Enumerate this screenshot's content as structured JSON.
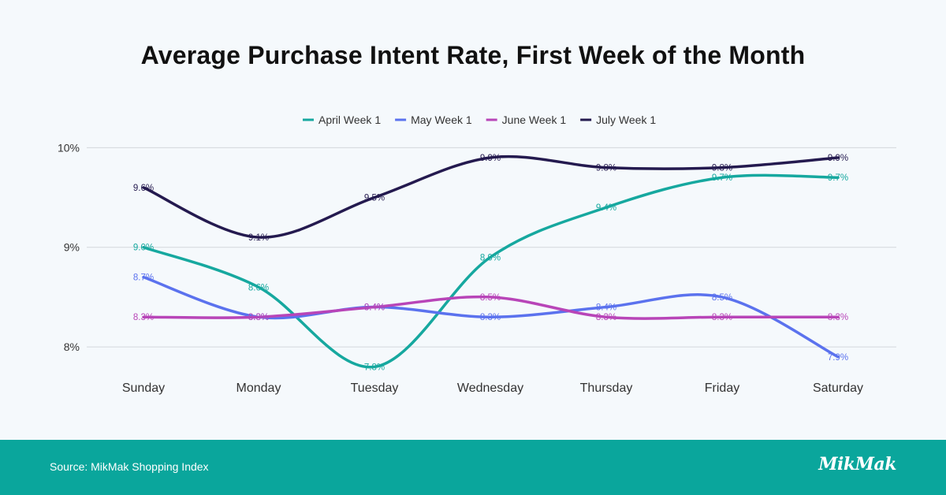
{
  "chart_data": {
    "type": "line",
    "title": "Average Purchase Intent Rate, First Week of the Month",
    "categories": [
      "Sunday",
      "Monday",
      "Tuesday",
      "Wednesday",
      "Thursday",
      "Friday",
      "Saturday"
    ],
    "ylim": [
      7.55,
      10.05
    ],
    "yticks": [
      {
        "value": 8,
        "label": "8%"
      },
      {
        "value": 9,
        "label": "9%"
      },
      {
        "value": 10,
        "label": "10%"
      }
    ],
    "legend_position": "top-center",
    "series": [
      {
        "name": "April Week 1",
        "color": "#16a89f",
        "values": [
          9.0,
          8.6,
          7.8,
          8.9,
          9.4,
          9.7,
          9.7
        ],
        "labels": [
          "9.0%",
          "8.6%",
          "7.8%",
          "8.9%",
          "9.4%",
          "9.7%",
          "9.7%"
        ]
      },
      {
        "name": "May Week 1",
        "color": "#5b72ee",
        "values": [
          8.7,
          8.3,
          8.4,
          8.3,
          8.4,
          8.5,
          7.9
        ],
        "labels": [
          "8.7%",
          "8.3%",
          "8.4%",
          "8.3%",
          "8.4%",
          "8.5%",
          "7.9%"
        ]
      },
      {
        "name": "June Week 1",
        "color": "#b845b8",
        "values": [
          8.3,
          8.3,
          8.4,
          8.5,
          8.3,
          8.3,
          8.3
        ],
        "labels": [
          "8.3%",
          "8.3%",
          "8.4%",
          "8.5%",
          "8.3%",
          "8.3%",
          "8.3%"
        ]
      },
      {
        "name": "July Week 1",
        "color": "#241a4f",
        "values": [
          9.6,
          9.1,
          9.5,
          9.9,
          9.8,
          9.8,
          9.9
        ],
        "labels": [
          "9.6%",
          "9.1%",
          "9.5%",
          "9.9%",
          "9.8%",
          "9.8%",
          "9.9%"
        ]
      }
    ]
  },
  "footer": {
    "source": "Source: MikMak Shopping Index",
    "logo": "MikMak",
    "background": "#0aa69c"
  }
}
